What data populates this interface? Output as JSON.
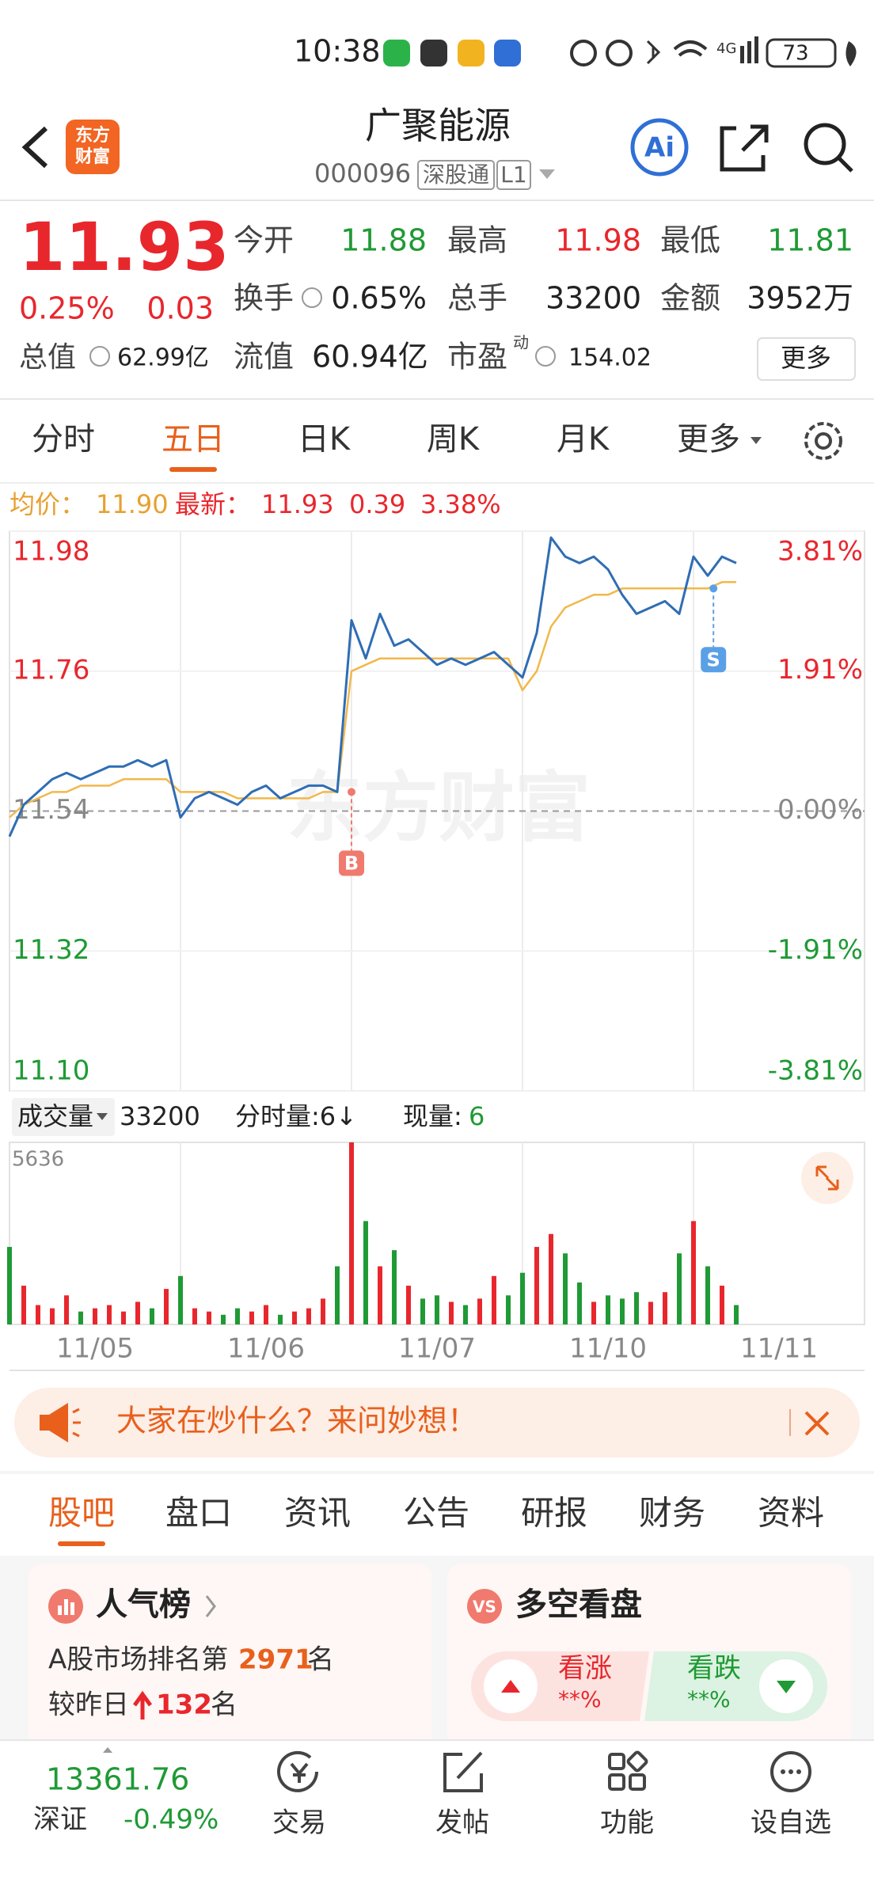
{
  "status_bar": {
    "time": "10:38",
    "battery": "73",
    "network": "4G"
  },
  "header": {
    "logo_top": "东方",
    "logo_bottom": "财富",
    "title": "广聚能源",
    "code": "000096",
    "tag": "深股通",
    "level": "L1",
    "ai": "Ai"
  },
  "quote": {
    "price": "11.93",
    "change_pct": "0.25%",
    "change": "0.03",
    "rows": [
      [
        {
          "label": "今开",
          "value": "11.88"
        },
        {
          "label": "最高",
          "value": "11.98"
        },
        {
          "label": "最低",
          "value": "11.81"
        }
      ],
      [
        {
          "label": "换手",
          "value": "0.65%"
        },
        {
          "label": "总手",
          "value": "33200"
        },
        {
          "label": "金额",
          "value": "3952万"
        }
      ]
    ],
    "total_value_label": "总值",
    "total_value": "62.99亿",
    "float_value_label": "流值",
    "float_value": "60.94亿",
    "pe_label": "市盈",
    "pe_sup": "动",
    "pe": "154.02",
    "more": "更多"
  },
  "tabs": [
    "分时",
    "五日",
    "日K",
    "周K",
    "月K",
    "更多"
  ],
  "info": {
    "avg_label": "均价：",
    "avg": "11.90",
    "latest_label": "最新：",
    "latest": "11.93",
    "change": "0.39",
    "change_pct": "3.38%"
  },
  "chart": {
    "type": "line",
    "watermark": "东方财富",
    "xlim": [
      0,
      60
    ],
    "xticks": [
      {
        "value": 6,
        "label": "11/05"
      },
      {
        "value": 18,
        "label": "11/06"
      },
      {
        "value": 30,
        "label": "11/07"
      },
      {
        "value": 42,
        "label": "11/10"
      },
      {
        "value": 54,
        "label": "11/11"
      }
    ],
    "ylim": [
      11.1,
      11.98
    ],
    "yticks": [
      11.98,
      11.76,
      11.54,
      11.32,
      {
        "value": 11.1,
        "label": "11.10"
      }
    ],
    "y2lim": [
      -3.81,
      3.81
    ],
    "y2ticks": [
      {
        "value": 3.81,
        "label": "3.81%"
      },
      {
        "value": 1.91,
        "label": "1.91%"
      },
      {
        "value": 0,
        "label": "0.00%"
      },
      {
        "value": -1.91,
        "label": "-1.91%"
      },
      {
        "value": -3.81,
        "label": "-3.81%"
      }
    ],
    "baseline": 11.54,
    "up_color": "#e8272d",
    "down_color": "#1f9a35",
    "series": [
      {
        "color": "#2f6db5",
        "values": [
          11.5,
          11.55,
          11.57,
          11.59,
          11.6,
          11.59,
          11.6,
          11.61,
          11.61,
          11.62,
          11.61,
          11.62,
          11.53,
          11.56,
          11.57,
          11.56,
          11.55,
          11.57,
          11.58,
          11.56,
          11.57,
          11.58,
          11.58,
          11.57,
          11.84,
          11.78,
          11.85,
          11.8,
          11.81,
          11.79,
          11.77,
          11.78,
          11.77,
          11.78,
          11.79,
          11.77,
          11.75,
          11.82,
          11.97,
          11.94,
          11.93,
          11.94,
          11.92,
          11.88,
          11.85,
          11.86,
          11.87,
          11.85,
          11.94,
          11.91,
          11.94,
          11.93
        ]
      },
      {
        "color": "#f2b84b",
        "values": [
          11.53,
          11.55,
          11.56,
          11.57,
          11.57,
          11.58,
          11.58,
          11.58,
          11.59,
          11.59,
          11.59,
          11.59,
          11.57,
          11.57,
          11.57,
          11.57,
          11.56,
          11.56,
          11.56,
          11.56,
          11.56,
          11.56,
          11.57,
          11.57,
          11.76,
          11.77,
          11.78,
          11.78,
          11.78,
          11.78,
          11.78,
          11.78,
          11.78,
          11.78,
          11.78,
          11.78,
          11.73,
          11.76,
          11.83,
          11.86,
          11.87,
          11.88,
          11.88,
          11.89,
          11.89,
          11.89,
          11.89,
          11.89,
          11.89,
          11.89,
          11.9,
          11.9
        ]
      }
    ],
    "annotations": [
      {
        "label": "B",
        "x": 24,
        "y": 11.57,
        "color": "#f07a6e"
      },
      {
        "label": "S",
        "x": 49.4,
        "y": 11.89,
        "color": "#5aa0e6"
      }
    ]
  },
  "volume_header": {
    "label": "成交量",
    "total": "33200",
    "tick_volume": "分时量:6↓",
    "current_label": "现量:",
    "current": "6"
  },
  "volume": {
    "type": "bar",
    "ylim": [
      0,
      5636
    ],
    "yticks": [
      5636
    ],
    "values": [
      2400,
      1200,
      600,
      500,
      900,
      400,
      500,
      600,
      400,
      700,
      500,
      1100,
      1500,
      500,
      400,
      300,
      500,
      400,
      600,
      300,
      400,
      500,
      800,
      1800,
      5636,
      3200,
      1800,
      2300,
      1200,
      800,
      900,
      700,
      600,
      800,
      1500,
      900,
      1600,
      2400,
      2800,
      2200,
      1300,
      700,
      900,
      800,
      1000,
      700,
      1000,
      2200,
      3200,
      1800,
      1200,
      600
    ]
  },
  "banner": {
    "text": "大家在炒什么？来问妙想！"
  },
  "sub_tabs": [
    "股吧",
    "盘口",
    "资讯",
    "公告",
    "研报",
    "财务",
    "资料"
  ],
  "cards": {
    "popularity": {
      "title": "人气榜",
      "rank_prefix": "A股市场排名第",
      "rank": "2971",
      "rank_suffix": "名",
      "change_prefix": "较昨日",
      "change": "132",
      "change_suffix": "名"
    },
    "sentiment": {
      "title": "多空看盘",
      "bull": "看涨",
      "bull_pct": "**%",
      "bear": "看跌",
      "bear_pct": "**%"
    }
  },
  "bottom_bar": {
    "index_value": "13361.76",
    "index_name": "深证",
    "index_change": "-0.49%",
    "nav": [
      "交易",
      "发帖",
      "功能",
      "设自选"
    ]
  }
}
